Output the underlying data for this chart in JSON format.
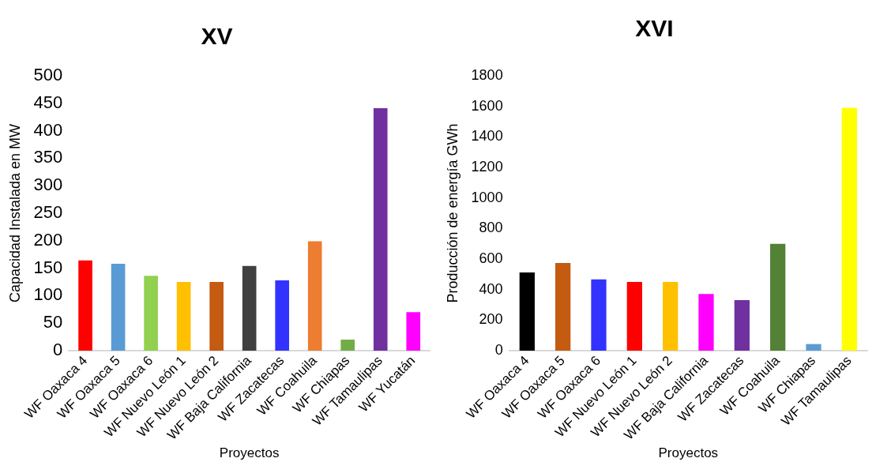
{
  "chart_data": [
    {
      "type": "bar",
      "title": "XV",
      "xlabel": "Proyectos",
      "ylabel": "Capacidad Instalada en MW",
      "categories": [
        "WF Oaxaca 4",
        "WF Oaxaca 5",
        "WF Oaxaca 6",
        "WF Nuevo León 1",
        "WF Nuevo León 2",
        "WF Baja California",
        "WF Zacatecas",
        "WF Coahuila",
        "WF Chiapas",
        "WF Tamaulipas",
        "WF Yucatán"
      ],
      "values": [
        164,
        158,
        136,
        125,
        125,
        154,
        128,
        199,
        20,
        441,
        70
      ],
      "colors": [
        "#ff0000",
        "#5b9bd5",
        "#92d050",
        "#ffc000",
        "#c55a11",
        "#404040",
        "#3333ff",
        "#ed7d31",
        "#70ad47",
        "#7030a0",
        "#ff00ff"
      ],
      "ylim": [
        0,
        500
      ],
      "yticks": [
        0,
        50,
        100,
        150,
        200,
        250,
        300,
        350,
        400,
        450,
        500
      ],
      "grid": false,
      "legend": false
    },
    {
      "type": "bar",
      "title": "XVI",
      "xlabel": "Proyectos",
      "ylabel": "Producción de energía GWh",
      "categories": [
        "WF Oaxaca 4",
        "WF Oaxaca 5",
        "WF Oaxaca 6",
        "WF Nuevo León 1",
        "WF Nuevo León 2",
        "WF Baja California",
        "WF Zacatecas",
        "WF Coahuila",
        "WF Chiapas",
        "WF Tamaulipas"
      ],
      "values": [
        512,
        574,
        467,
        450,
        450,
        371,
        331,
        699,
        43,
        1591
      ],
      "colors": [
        "#000000",
        "#c55a11",
        "#3333ff",
        "#ff0000",
        "#ffc000",
        "#ff00ff",
        "#7030a0",
        "#538135",
        "#5b9bd5",
        "#ffff00"
      ],
      "ylim": [
        0,
        1800
      ],
      "yticks": [
        0,
        200,
        400,
        600,
        800,
        1000,
        1200,
        1400,
        1600,
        1800
      ],
      "grid": false,
      "legend": false
    }
  ]
}
